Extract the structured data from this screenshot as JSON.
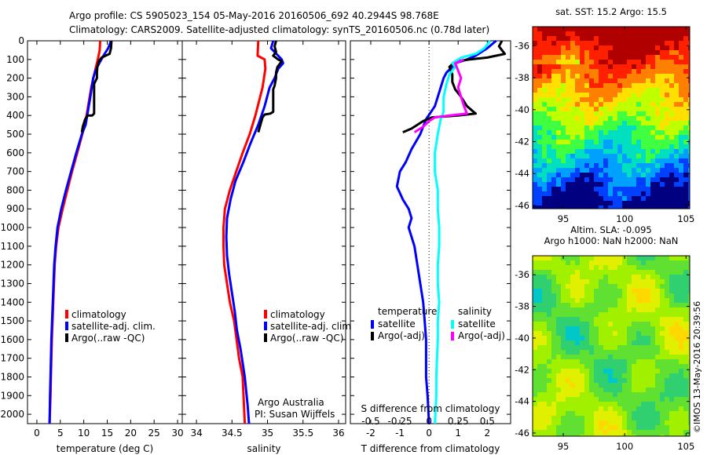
{
  "header": {
    "line1": "Argo profile: CS 5905023_154 05-May-2016 20160506_692 40.2944S 98.768E",
    "line2": "Climatology: CARS2009. Satellite-adjusted climatology: synTS_20160506.nc (0.78d later)"
  },
  "side_text": "©IMOS 13-May-2016 20:39:56",
  "chart_data": [
    {
      "type": "line",
      "id": "temperature",
      "xlabel": "temperature (deg C)",
      "ylabel": "",
      "xlim": [
        -2,
        31
      ],
      "ylim": [
        2050,
        0
      ],
      "xticks": [
        0,
        5,
        10,
        15,
        20,
        25,
        30
      ],
      "yticks": [
        0,
        100,
        200,
        300,
        400,
        500,
        600,
        700,
        800,
        900,
        1000,
        1100,
        1200,
        1300,
        1400,
        1500,
        1600,
        1700,
        1800,
        1900,
        2000
      ],
      "legend": [
        "climatology",
        "satellite-adj. clim.",
        "Argo(..raw -QC)"
      ],
      "series": [
        {
          "name": "climatology",
          "color": "#ff0000",
          "points": [
            [
              13.5,
              0
            ],
            [
              13.4,
              50
            ],
            [
              13.0,
              100
            ],
            [
              12.5,
              150
            ],
            [
              11.6,
              250
            ],
            [
              10.6,
              400
            ],
            [
              9.7,
              500
            ],
            [
              8.6,
              600
            ],
            [
              7.5,
              700
            ],
            [
              6.5,
              800
            ],
            [
              5.5,
              900
            ],
            [
              4.6,
              1000
            ],
            [
              4.1,
              1100
            ],
            [
              3.8,
              1200
            ],
            [
              3.5,
              1400
            ],
            [
              3.2,
              1600
            ],
            [
              3.0,
              1800
            ],
            [
              2.9,
              1900
            ],
            [
              2.7,
              2050
            ]
          ]
        },
        {
          "name": "satellite-adj. clim.",
          "color": "#0000ff",
          "points": [
            [
              15.8,
              0
            ],
            [
              15.2,
              40
            ],
            [
              14.2,
              80
            ],
            [
              13.3,
              120
            ],
            [
              12.5,
              160
            ],
            [
              12.0,
              200
            ],
            [
              11.4,
              300
            ],
            [
              10.4,
              450
            ],
            [
              9.6,
              500
            ],
            [
              8.4,
              600
            ],
            [
              7.3,
              700
            ],
            [
              6.2,
              800
            ],
            [
              5.2,
              900
            ],
            [
              4.4,
              1000
            ],
            [
              4.0,
              1100
            ],
            [
              3.7,
              1200
            ],
            [
              3.4,
              1400
            ],
            [
              3.1,
              1600
            ],
            [
              2.9,
              1800
            ],
            [
              2.8,
              1900
            ],
            [
              2.7,
              2050
            ]
          ]
        },
        {
          "name": "Argo(..raw -QC)",
          "color": "#000000",
          "points": [
            [
              15.9,
              0
            ],
            [
              15.8,
              40
            ],
            [
              15.5,
              70
            ],
            [
              13.8,
              90
            ],
            [
              13.2,
              110
            ],
            [
              12.9,
              140
            ],
            [
              12.8,
              170
            ],
            [
              12.8,
              200
            ],
            [
              12.6,
              210
            ],
            [
              12.2,
              230
            ],
            [
              12.2,
              350
            ],
            [
              12.2,
              390
            ],
            [
              11.8,
              400
            ],
            [
              10.8,
              400
            ],
            [
              10.3,
              420
            ],
            [
              9.8,
              460
            ],
            [
              9.6,
              490
            ]
          ]
        }
      ]
    },
    {
      "type": "line",
      "id": "salinity",
      "xlabel": "salinity",
      "xlim": [
        33.8,
        36.1
      ],
      "ylim": [
        2050,
        0
      ],
      "xticks": [
        34,
        34.5,
        35,
        35.5,
        36
      ],
      "legend": [
        "climatology",
        "satellite-adj. clim.",
        "Argo(..raw -QC)"
      ],
      "annotation": [
        "Argo Australia",
        "PI: Susan Wijffels"
      ],
      "series": [
        {
          "name": "climatology",
          "color": "#ff0000",
          "points": [
            [
              34.87,
              0
            ],
            [
              34.86,
              80
            ],
            [
              34.96,
              100
            ],
            [
              34.97,
              150
            ],
            [
              34.93,
              250
            ],
            [
              34.83,
              400
            ],
            [
              34.75,
              500
            ],
            [
              34.65,
              600
            ],
            [
              34.56,
              700
            ],
            [
              34.47,
              800
            ],
            [
              34.4,
              900
            ],
            [
              34.38,
              1000
            ],
            [
              34.38,
              1100
            ],
            [
              34.39,
              1200
            ],
            [
              34.43,
              1300
            ],
            [
              34.47,
              1400
            ],
            [
              34.53,
              1500
            ],
            [
              34.6,
              1700
            ],
            [
              34.65,
              1800
            ],
            [
              34.68,
              2050
            ]
          ]
        },
        {
          "name": "satellite-adj. clim.",
          "color": "#0000ff",
          "points": [
            [
              35.08,
              0
            ],
            [
              35.05,
              40
            ],
            [
              35.15,
              80
            ],
            [
              35.2,
              100
            ],
            [
              35.22,
              120
            ],
            [
              35.15,
              150
            ],
            [
              35.1,
              200
            ],
            [
              35.03,
              250
            ],
            [
              34.96,
              350
            ],
            [
              34.87,
              450
            ],
            [
              34.76,
              550
            ],
            [
              34.66,
              650
            ],
            [
              34.55,
              750
            ],
            [
              34.48,
              850
            ],
            [
              34.43,
              950
            ],
            [
              34.42,
              1050
            ],
            [
              34.43,
              1150
            ],
            [
              34.46,
              1250
            ],
            [
              34.5,
              1350
            ],
            [
              34.54,
              1450
            ],
            [
              34.57,
              1550
            ],
            [
              34.62,
              1650
            ],
            [
              34.68,
              1800
            ],
            [
              34.72,
              1950
            ],
            [
              34.74,
              2050
            ]
          ]
        },
        {
          "name": "Argo(..raw -QC)",
          "color": "#000000",
          "points": [
            [
              35.12,
              0
            ],
            [
              35.1,
              30
            ],
            [
              35.12,
              60
            ],
            [
              35.08,
              80
            ],
            [
              35.15,
              100
            ],
            [
              35.2,
              110
            ],
            [
              35.14,
              140
            ],
            [
              35.12,
              170
            ],
            [
              35.12,
              200
            ],
            [
              35.1,
              240
            ],
            [
              35.08,
              260
            ],
            [
              35.08,
              380
            ],
            [
              35.04,
              390
            ],
            [
              34.96,
              395
            ],
            [
              34.93,
              410
            ],
            [
              34.9,
              450
            ],
            [
              34.87,
              490
            ]
          ]
        }
      ]
    },
    {
      "type": "line",
      "id": "difference",
      "xlabel": "T difference from climatology",
      "xlabel_top": "S difference from climatology",
      "xlim": [
        -2.7,
        2.8
      ],
      "ylim": [
        2050,
        0
      ],
      "xticks": [
        -2,
        -1,
        0,
        1,
        2
      ],
      "xticks_S": [
        -0.5,
        -0.25,
        0,
        0.25,
        0.5
      ],
      "xticks_S_labels": [
        "-0.5",
        "-0.25",
        "0",
        "0.25",
        "0.5"
      ],
      "legend_temperature": {
        "title": "temperature",
        "items": [
          "satellite",
          "Argo(-adj)"
        ]
      },
      "legend_salinity": {
        "title": "salinity",
        "items": [
          "satellite",
          "Argo(-adj)"
        ]
      },
      "series": [
        {
          "name": "temperature satellite",
          "color": "#0000ff",
          "points": [
            [
              2.3,
              0
            ],
            [
              2.0,
              40
            ],
            [
              1.6,
              80
            ],
            [
              1.3,
              100
            ],
            [
              0.9,
              120
            ],
            [
              0.8,
              140
            ],
            [
              0.6,
              170
            ],
            [
              0.5,
              200
            ],
            [
              0.4,
              250
            ],
            [
              0.3,
              300
            ],
            [
              0.2,
              350
            ],
            [
              -0.1,
              420
            ],
            [
              -0.2,
              460
            ],
            [
              -0.3,
              500
            ],
            [
              -0.6,
              580
            ],
            [
              -0.8,
              650
            ],
            [
              -1.0,
              700
            ],
            [
              -1.1,
              780
            ],
            [
              -0.9,
              850
            ],
            [
              -0.7,
              900
            ],
            [
              -0.6,
              950
            ],
            [
              -0.7,
              1000
            ],
            [
              -0.5,
              1100
            ],
            [
              -0.4,
              1200
            ],
            [
              -0.3,
              1300
            ],
            [
              -0.2,
              1400
            ],
            [
              -0.15,
              1500
            ],
            [
              -0.1,
              1600
            ],
            [
              -0.1,
              1800
            ],
            [
              -0.05,
              1900
            ],
            [
              0.0,
              2050
            ]
          ]
        },
        {
          "name": "temperature Argo(-adj)",
          "color": "#000000",
          "points": [
            [
              2.5,
              0
            ],
            [
              2.4,
              30
            ],
            [
              2.6,
              70
            ],
            [
              2.0,
              90
            ],
            [
              1.4,
              100
            ],
            [
              0.9,
              110
            ],
            [
              0.7,
              140
            ],
            [
              0.8,
              180
            ],
            [
              0.8,
              220
            ],
            [
              0.9,
              260
            ],
            [
              1.1,
              300
            ],
            [
              1.3,
              350
            ],
            [
              1.6,
              390
            ],
            [
              1.0,
              400
            ],
            [
              0.1,
              410
            ],
            [
              -0.2,
              430
            ],
            [
              -0.6,
              470
            ],
            [
              -0.9,
              490
            ]
          ]
        },
        {
          "name": "salinity satellite",
          "color": "#00ffff",
          "points": [
            [
              2.1,
              0
            ],
            [
              1.9,
              40
            ],
            [
              1.6,
              70
            ],
            [
              1.1,
              90
            ],
            [
              0.8,
              120
            ],
            [
              0.9,
              140
            ],
            [
              0.7,
              180
            ],
            [
              0.6,
              230
            ],
            [
              0.5,
              300
            ],
            [
              0.5,
              380
            ],
            [
              0.4,
              420
            ],
            [
              0.3,
              500
            ],
            [
              0.2,
              600
            ],
            [
              0.2,
              700
            ],
            [
              0.3,
              800
            ],
            [
              0.3,
              900
            ],
            [
              0.35,
              1000
            ],
            [
              0.35,
              1100
            ],
            [
              0.3,
              1200
            ],
            [
              0.3,
              1300
            ],
            [
              0.35,
              1400
            ],
            [
              0.3,
              1500
            ],
            [
              0.3,
              1600
            ],
            [
              0.25,
              1800
            ],
            [
              0.25,
              1900
            ],
            [
              0.2,
              2050
            ]
          ]
        },
        {
          "name": "salinity Argo(-adj)",
          "color": "#ff00ff",
          "points": [
            [
              1.2,
              100
            ],
            [
              0.9,
              120
            ],
            [
              1.0,
              160
            ],
            [
              1.1,
              200
            ],
            [
              1.0,
              250
            ],
            [
              1.1,
              300
            ],
            [
              1.2,
              350
            ],
            [
              1.3,
              390
            ],
            [
              0.7,
              400
            ],
            [
              0.2,
              410
            ],
            [
              0.0,
              430
            ],
            [
              -0.2,
              460
            ],
            [
              -0.5,
              490
            ]
          ]
        }
      ]
    },
    {
      "type": "heatmap",
      "id": "sst-map",
      "title": "sat. SST: 15.2 Argo: 15.5",
      "xlim": [
        92.5,
        105.3
      ],
      "ylim": [
        -46.2,
        -34.8
      ],
      "xticks": [
        95,
        100,
        105
      ],
      "yticks": [
        -36,
        -38,
        -40,
        -42,
        -44,
        -46
      ],
      "colors": [
        "#000080",
        "#0040ff",
        "#00a0ff",
        "#00e0c0",
        "#40ff40",
        "#c0ff00",
        "#ffe000",
        "#ff8000",
        "#ff2000",
        "#b00000"
      ]
    },
    {
      "type": "heatmap",
      "id": "sla-map",
      "title": "Altim. SLA: -0.095",
      "subtitle": "Argo h1000: NaN h2000: NaN",
      "xlim": [
        92.5,
        105.3
      ],
      "ylim": [
        -46.2,
        -34.8
      ],
      "xticks": [
        95,
        100,
        105
      ],
      "yticks": [
        -36,
        -38,
        -40,
        -42,
        -44,
        -46
      ],
      "colors": [
        "#00c8c8",
        "#30d070",
        "#60e030",
        "#a0f000",
        "#e0f000",
        "#ffd800"
      ]
    }
  ]
}
